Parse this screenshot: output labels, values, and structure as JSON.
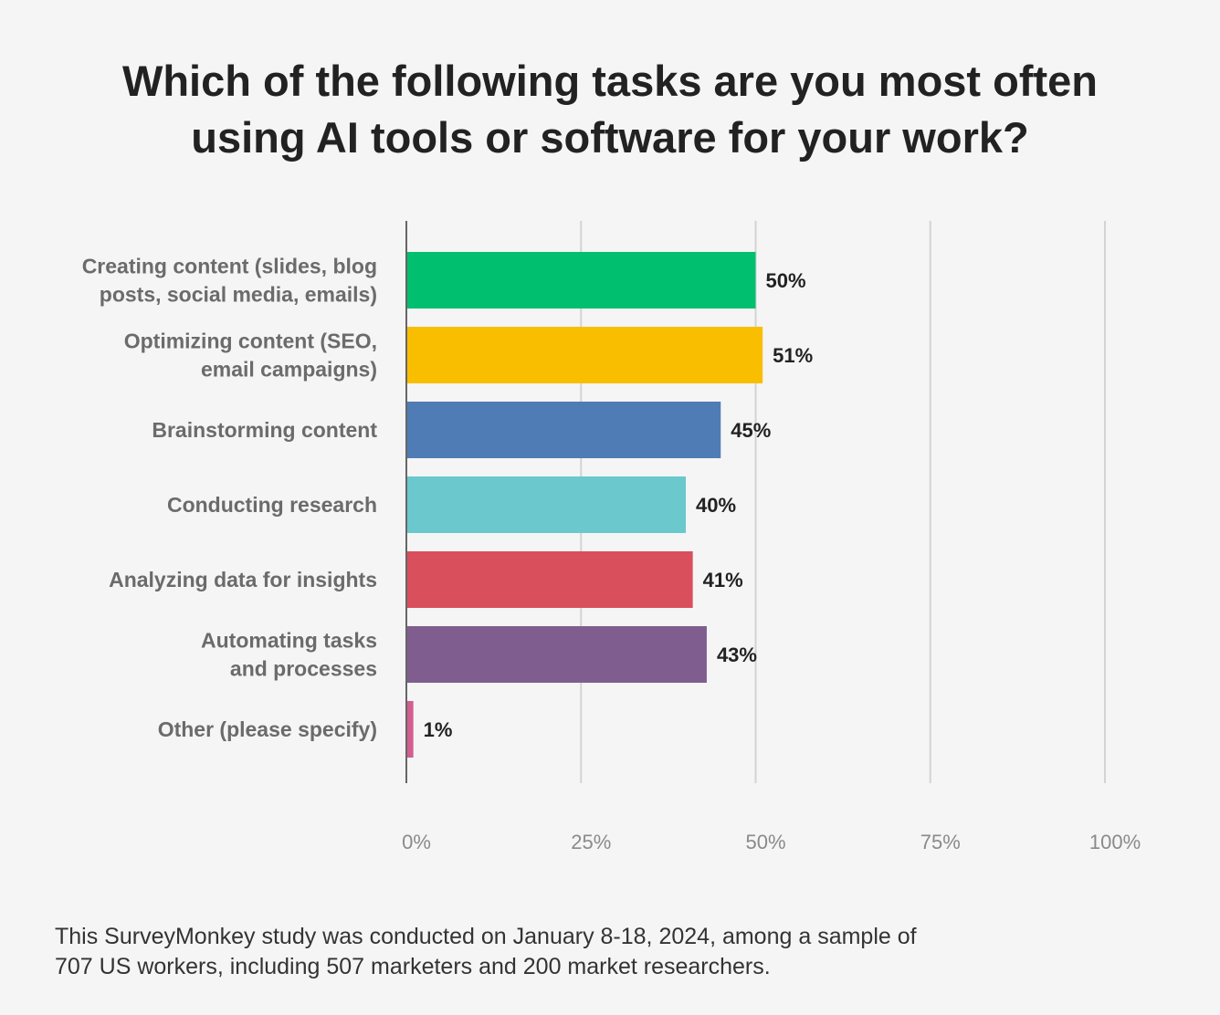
{
  "chart_data": {
    "type": "bar",
    "orientation": "horizontal",
    "title": "Which of the following tasks are you most often using AI tools or software for your work?",
    "categories": [
      "Creating content (slides, blog posts, social media, emails)",
      "Optimizing content (SEO, email campaigns)",
      "Brainstorming content",
      "Conducting research",
      "Analyzing data for insights",
      "Automating tasks and processes",
      "Other (please specify)"
    ],
    "category_lines": [
      [
        "Creating content (slides, blog",
        "posts, social media, emails)"
      ],
      [
        "Optimizing content (SEO,",
        "email campaigns)"
      ],
      [
        "Brainstorming content"
      ],
      [
        "Conducting research"
      ],
      [
        "Analyzing data for insights"
      ],
      [
        "Automating tasks",
        "and processes"
      ],
      [
        "Other (please specify)"
      ]
    ],
    "values": [
      50,
      51,
      45,
      40,
      41,
      43,
      1
    ],
    "value_labels": [
      "50%",
      "51%",
      "45%",
      "40%",
      "41%",
      "43%",
      "1%"
    ],
    "colors": [
      "#00bf6f",
      "#f9be00",
      "#507cb6",
      "#6bc8cd",
      "#d94f5c",
      "#7f5e8f",
      "#d25f90"
    ],
    "xlim": [
      0,
      100
    ],
    "xticks": [
      0,
      25,
      50,
      75,
      100
    ],
    "xtick_labels": [
      "0%",
      "25%",
      "50%",
      "75%",
      "100%"
    ],
    "grid": true
  },
  "title_lines": [
    "Which of the following tasks are you most often",
    "using AI tools or software for your work?"
  ],
  "footnote": {
    "line1": "This SurveyMonkey study was conducted on January 8-18, 2024, among a sample of",
    "line2": "707 US workers, including 507 marketers and 200 market researchers."
  }
}
